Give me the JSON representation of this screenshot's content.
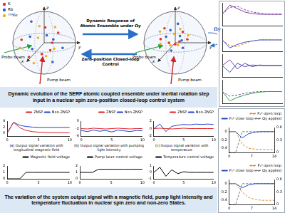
{
  "diagram": {
    "legend": [
      {
        "label": "K",
        "color": "#e03030"
      },
      {
        "label": "Rb",
        "color": "#3060d0"
      },
      {
        "label": "¹²⁹Xe",
        "color": "#f0b020"
      }
    ],
    "spheres": [
      {
        "axes": [
          "z",
          "x",
          "y"
        ],
        "beams": [
          "Probe beam",
          "Pump beam"
        ]
      },
      {
        "axes": [
          "z",
          "x",
          "y"
        ],
        "beams": [
          "Probe beam",
          "Pump beam"
        ],
        "rotation": "Ωy"
      }
    ],
    "arrows": [
      "Dynamic Response of Atomic Ensemble under Ωy",
      "Zero-position Closed-loop Control"
    ]
  },
  "captions": {
    "top": "Dynamic evolution of the SERF atomic coupled ensemble under inertial rotation step input in a nuclear spin zero-position closed-loop control system",
    "bottom": "The variation of the system output signal with a magnetic field, pump light intensity and temperature fluctuation in nuclear spin zero and non-zero States."
  },
  "subplot_captions": [
    "(a) Output signal variation with longitudinal magnetic field",
    "(b) Output signal variation with pumping light intensity",
    "(c) Output signal variation with temperature"
  ],
  "chart_data": [
    {
      "type": "line",
      "x": [
        0,
        1,
        2,
        3,
        4,
        5,
        6,
        7,
        8
      ],
      "xlim": [
        0,
        8
      ],
      "ylim": [
        -1,
        1
      ],
      "tick_labels": false,
      "grid": false,
      "series": [
        {
          "color": "#7b3fa0",
          "values": [
            0,
            0.8,
            0.5,
            0.2,
            0.05,
            0,
            0,
            0,
            0
          ]
        },
        {
          "color": "#7b3fa0",
          "line_style": "dashed",
          "values": [
            0,
            0.6,
            0.7,
            0.4,
            0.2,
            0.1,
            0,
            0,
            0
          ]
        }
      ]
    },
    {
      "type": "line",
      "x": [
        0,
        1,
        2,
        3,
        4,
        5,
        6,
        7,
        8
      ],
      "xlim": [
        0,
        8
      ],
      "ylim": [
        -1,
        1
      ],
      "tick_labels": false,
      "grid": false,
      "series": [
        {
          "color": "#3355cc",
          "values": [
            0,
            -0.7,
            -0.4,
            -0.2,
            -0.1,
            0,
            0,
            0,
            0
          ]
        },
        {
          "color": "#e08a30",
          "line_style": "dashed",
          "values": [
            0,
            -0.5,
            -0.6,
            -0.3,
            -0.1,
            0,
            0,
            0,
            0
          ]
        }
      ]
    },
    {
      "type": "line",
      "x": [
        0,
        1,
        2,
        3,
        4,
        5,
        6,
        7,
        8
      ],
      "xlim": [
        0,
        8
      ],
      "ylim": [
        -1,
        1
      ],
      "tick_labels": false,
      "grid": false,
      "series": [
        {
          "color": "#7b3fa0",
          "values": [
            0,
            0.5,
            -0.3,
            0.2,
            -0.1,
            0.05,
            0,
            0,
            0
          ]
        },
        {
          "color": "#3355cc",
          "values": [
            0,
            -0.6,
            0.2,
            -0.1,
            0.05,
            0,
            0,
            0,
            0
          ]
        }
      ]
    },
    {
      "type": "line",
      "x": [
        0,
        1,
        2,
        3,
        4,
        5,
        6,
        7,
        8
      ],
      "xlim": [
        0,
        8
      ],
      "ylim": [
        -1,
        1
      ],
      "tick_labels": false,
      "grid": false,
      "series": [
        {
          "color": "#3a9a50",
          "values": [
            0,
            -0.8,
            -0.5,
            -0.3,
            -0.15,
            -0.05,
            0,
            0,
            0
          ]
        },
        {
          "color": "#7b3fa0",
          "line_style": "dashed",
          "values": [
            0,
            -0.4,
            -0.3,
            -0.15,
            -0.05,
            0,
            0,
            0,
            0
          ]
        }
      ]
    },
    {
      "type": "line",
      "x": [
        0,
        1,
        2,
        3,
        4,
        5,
        6,
        7,
        8,
        9,
        10
      ],
      "xlim": [
        0,
        10
      ],
      "xticks": [
        0,
        5,
        10
      ],
      "ylim": [
        -1,
        4
      ],
      "yticks": [
        0,
        2,
        4
      ],
      "grid": false,
      "legend": "top-right",
      "series": [
        {
          "name": "ZNSP",
          "color": "#e02020",
          "values": [
            0,
            3.6,
            1.8,
            0.9,
            0.5,
            0.3,
            0.2,
            0.1,
            0.1,
            0.1,
            0.1
          ]
        },
        {
          "name": "Non-ZNSP",
          "color": "#2040d0",
          "values": [
            0,
            3.6,
            2.6,
            2.2,
            2.0,
            1.9,
            1.9,
            1.9,
            1.9,
            1.9,
            1.9
          ]
        }
      ]
    },
    {
      "type": "line",
      "x": [
        0,
        1,
        2,
        3,
        4,
        5,
        6,
        7,
        8,
        9,
        10
      ],
      "xlim": [
        0,
        10
      ],
      "xticks": [
        0,
        5,
        10
      ],
      "ylim": [
        -4,
        0
      ],
      "yticks": [
        -4,
        -2,
        0
      ],
      "grid": false,
      "legend": "top-right",
      "series": [
        {
          "name": "ZNSP",
          "color": "#e02020",
          "values": [
            -2.0,
            -2.1,
            -1.9,
            -2.0,
            -2.1,
            -2.0,
            -1.9,
            -2.0,
            -2.1,
            -2.0,
            -2.0
          ]
        },
        {
          "name": "Non-ZNSP",
          "color": "#2040d0",
          "values": [
            -2.5,
            -2.8,
            -2.4,
            -2.7,
            -2.5,
            -2.9,
            -2.4,
            -2.6,
            -2.8,
            -2.5,
            -2.6
          ]
        }
      ]
    },
    {
      "type": "line",
      "x": [
        0,
        1,
        2,
        3,
        4,
        5,
        6,
        7,
        8,
        9,
        10
      ],
      "xlim": [
        0,
        10
      ],
      "xticks": [
        0,
        5,
        10
      ],
      "ylim": [
        -2,
        2
      ],
      "yticks": [
        -2,
        0,
        2
      ],
      "grid": false,
      "legend": "top-right",
      "series": [
        {
          "name": "ZNSP",
          "color": "#e02020",
          "values": [
            0,
            0.1,
            0,
            -0.1,
            0,
            0.1,
            0,
            0,
            0,
            0,
            0
          ]
        },
        {
          "name": "Non-ZNSP",
          "color": "#2040d0",
          "values": [
            0,
            1.2,
            -0.8,
            0.6,
            0.9,
            1.1,
            1.0,
            1.2,
            1.1,
            1.2,
            1.1
          ]
        }
      ]
    },
    {
      "type": "line",
      "x": [
        0,
        1,
        2,
        3,
        4,
        5,
        6,
        7,
        8,
        9,
        10
      ],
      "xlim": [
        0,
        10
      ],
      "xticks": [
        0,
        5,
        10
      ],
      "ylim": [
        0,
        2
      ],
      "yticks": [
        0,
        1,
        2
      ],
      "grid": false,
      "legend": "top-right",
      "series": [
        {
          "name": "Magnetic field voltage",
          "color": "#000000",
          "values": [
            0,
            0,
            0,
            1,
            1,
            1,
            1,
            1,
            1,
            1,
            1
          ]
        }
      ]
    },
    {
      "type": "line",
      "x": [
        0,
        1,
        2,
        3,
        4,
        5,
        6,
        7,
        8,
        9,
        10
      ],
      "xlim": [
        0,
        10
      ],
      "xticks": [
        0,
        5,
        10
      ],
      "ylim": [
        0,
        2
      ],
      "yticks": [
        0,
        1,
        2
      ],
      "grid": false,
      "legend": "top-right",
      "series": [
        {
          "name": "Pump laser control voltage",
          "color": "#000000",
          "values": [
            1,
            1,
            1,
            1.5,
            1.5,
            1.5,
            1.5,
            1.5,
            1.5,
            1.5,
            1.5
          ]
        }
      ]
    },
    {
      "type": "line",
      "x": [
        0,
        1,
        2,
        3,
        4,
        5,
        6,
        7,
        8,
        9,
        10
      ],
      "xlim": [
        0,
        10
      ],
      "xticks": [
        0,
        5,
        10
      ],
      "ylim": [
        -1,
        1
      ],
      "yticks": [
        -1,
        0,
        1
      ],
      "grid": false,
      "legend": "top-right",
      "series": [
        {
          "name": "Temperature control voltage",
          "color": "#000000",
          "values": [
            0,
            0.8,
            -0.6,
            0.4,
            -0.2,
            0.1,
            0,
            0,
            0,
            0,
            0
          ]
        }
      ]
    },
    {
      "type": "line",
      "x": [
        0,
        2,
        4,
        6,
        8,
        10,
        12,
        14
      ],
      "xlim": [
        0,
        14
      ],
      "xticks": [
        0,
        7,
        14
      ],
      "ylim": [
        -0.5,
        0.1
      ],
      "yticks": [
        -0.4,
        -0.2,
        0
      ],
      "y2lim": [
        0,
        0.6
      ],
      "y2ticks": [
        0,
        0.3,
        0.6
      ],
      "grid": false,
      "legend": "top-right",
      "series": [
        {
          "name": "Pₓᵉ open loop",
          "color": "#e08a30",
          "line_style": "dashed",
          "values": [
            0,
            0,
            -0.3,
            -0.4,
            -0.42,
            -0.43,
            -0.43,
            -0.43
          ]
        },
        {
          "name": "Pₓᵉ close loop",
          "color": "#2050c0",
          "values": [
            0,
            0,
            -0.15,
            -0.05,
            -0.01,
            0,
            0,
            0
          ]
        },
        {
          "name": "Ωy applied",
          "color": "#777777",
          "line_style": "dashed",
          "axis": "y2",
          "values": [
            0,
            0,
            0.5,
            0.5,
            0.5,
            0.5,
            0.5,
            0.5
          ]
        }
      ]
    },
    {
      "type": "line",
      "x": [
        0,
        2,
        4,
        6,
        8,
        10,
        12,
        14
      ],
      "xlim": [
        0,
        14
      ],
      "xticks": [
        0,
        7,
        14
      ],
      "ylim": [
        -0.5,
        0.1
      ],
      "yticks": [
        -0.4,
        -0.2,
        0
      ],
      "y2lim": [
        0,
        0.6
      ],
      "y2ticks": [
        0,
        0.3,
        0.6
      ],
      "grid": false,
      "legend": "top-right",
      "series": [
        {
          "name": "Pₓⁿ open loop",
          "color": "#e08a30",
          "line_style": "dashed",
          "values": [
            0,
            0,
            -0.2,
            -0.33,
            -0.38,
            -0.4,
            -0.4,
            -0.4
          ]
        },
        {
          "name": "Pₓⁿ close loop",
          "color": "#2050c0",
          "values": [
            0,
            0,
            -0.1,
            -0.03,
            0,
            0,
            0,
            0
          ]
        },
        {
          "name": "Ωy applied",
          "color": "#777777",
          "line_style": "dashed",
          "axis": "y2",
          "values": [
            0,
            0,
            0.5,
            0.5,
            0.5,
            0.5,
            0.5,
            0.5
          ]
        }
      ]
    }
  ]
}
